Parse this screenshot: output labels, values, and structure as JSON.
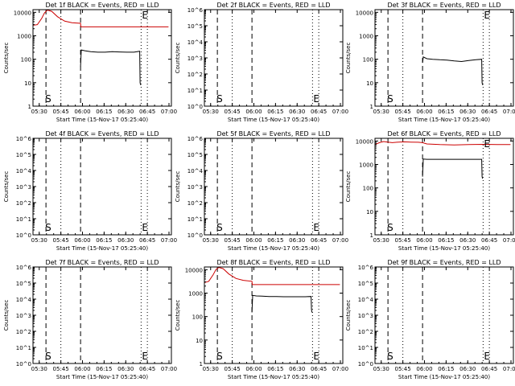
{
  "colors": {
    "background": "#ffffff",
    "axes": "#000000",
    "events": "#000000",
    "lld": "#cc0000"
  },
  "chart_data": [
    {
      "type": "line",
      "title": "Det 1f BLACK = Events, RED = LLD",
      "xlabel": "Start Time (15-Nov-17 05:25:40)",
      "ylabel": "Counts/sec",
      "x_unit": "minutes since 05:25:40",
      "xlim": [
        0,
        96
      ],
      "xtick_values": [
        4.33,
        19.33,
        34.33,
        49.33,
        64.33,
        79.33,
        94.33
      ],
      "xtick_labels": [
        "05:30",
        "05:45",
        "06:00",
        "06:15",
        "06:30",
        "06:45",
        "07:00"
      ],
      "ylim": [
        1,
        13000
      ],
      "ytick_values": [
        1,
        10,
        100,
        1000,
        10000
      ],
      "ytick_labels": [
        "1",
        "10",
        "100",
        "1000",
        "10000"
      ],
      "markers": [
        {
          "label": "E",
          "x": 75
        }
      ],
      "secondary_markers": [
        {
          "label": "S",
          "x": 9
        }
      ],
      "dashed_lines_x": [
        9,
        33
      ],
      "dotted_lines_x": [
        19.33,
        75,
        79.33
      ],
      "series": [
        {
          "name": "LLD",
          "color": "#cc0000",
          "x": [
            0,
            3,
            6,
            8,
            10,
            13,
            17,
            22,
            27,
            33,
            33.2,
            40,
            60,
            80,
            94
          ],
          "y": [
            2800,
            3000,
            5500,
            9500,
            12500,
            11000,
            6500,
            4200,
            3600,
            3400,
            2400,
            2400,
            2400,
            2400,
            2400
          ]
        },
        {
          "name": "Events",
          "color": "#000000",
          "x": [
            33,
            33.5,
            36,
            40,
            45,
            50,
            55,
            60,
            65,
            70,
            74,
            74.3,
            74.6
          ],
          "y": [
            50,
            250,
            230,
            210,
            200,
            200,
            210,
            205,
            200,
            200,
            220,
            10,
            8
          ]
        }
      ]
    },
    {
      "type": "line",
      "title": "Det 2f BLACK = Events, RED = LLD",
      "xlabel": "Start Time (15-Nov-17 05:25:40)",
      "ylabel": "Counts/sec",
      "x_unit": "minutes since 05:25:40",
      "xlim": [
        0,
        96
      ],
      "xtick_values": [
        4.33,
        19.33,
        34.33,
        49.33,
        64.33,
        79.33,
        94.33
      ],
      "xtick_labels": [
        "05:30",
        "05:45",
        "06:00",
        "06:15",
        "06:30",
        "06:45",
        "07:00"
      ],
      "ylim": [
        1,
        1000000
      ],
      "ytick_values": [
        1,
        10,
        100,
        1000,
        10000,
        100000,
        1000000
      ],
      "ytick_labels": [
        "10^0",
        "10^1",
        "10^2",
        "10^3",
        "10^4",
        "10^5",
        "10^6"
      ],
      "markers": [
        {
          "label": "E",
          "x": 75
        }
      ],
      "secondary_markers": [
        {
          "label": "S",
          "x": 9
        }
      ],
      "dashed_lines_x": [
        9,
        33
      ],
      "dotted_lines_x": [
        19.33,
        75,
        79.33
      ],
      "series": []
    },
    {
      "type": "line",
      "title": "Det 3f BLACK = Events, RED = LLD",
      "xlabel": "Start Time (15-Nov-17 05:25:40)",
      "ylabel": "Counts/sec",
      "x_unit": "minutes since 05:25:40",
      "xlim": [
        0,
        96
      ],
      "xtick_values": [
        4.33,
        19.33,
        34.33,
        49.33,
        64.33,
        79.33,
        94.33
      ],
      "xtick_labels": [
        "05:30",
        "05:45",
        "06:00",
        "06:15",
        "06:30",
        "06:45",
        "07:00"
      ],
      "ylim": [
        1,
        13000
      ],
      "ytick_values": [
        1,
        10,
        100,
        1000,
        10000
      ],
      "ytick_labels": [
        "1",
        "10",
        "100",
        "1000",
        "10000"
      ],
      "markers": [
        {
          "label": "E",
          "x": 75
        }
      ],
      "secondary_markers": [
        {
          "label": "S",
          "x": 9
        }
      ],
      "dashed_lines_x": [
        9,
        33
      ],
      "dotted_lines_x": [
        19.33,
        75,
        79.33
      ],
      "series": [
        {
          "name": "Events",
          "color": "#000000",
          "x": [
            33,
            33.5,
            36,
            40,
            45,
            50,
            55,
            60,
            65,
            70,
            74,
            74.3,
            74.6
          ],
          "y": [
            70,
            125,
            105,
            100,
            95,
            92,
            85,
            80,
            88,
            95,
            100,
            10,
            8
          ]
        }
      ]
    },
    {
      "type": "line",
      "title": "Det 4f BLACK = Events, RED = LLD",
      "xlabel": "Start Time (15-Nov-17 05:25:40)",
      "ylabel": "Counts/sec",
      "x_unit": "minutes since 05:25:40",
      "xlim": [
        0,
        96
      ],
      "xtick_values": [
        4.33,
        19.33,
        34.33,
        49.33,
        64.33,
        79.33,
        94.33
      ],
      "xtick_labels": [
        "05:30",
        "05:45",
        "06:00",
        "06:15",
        "06:30",
        "06:45",
        "07:00"
      ],
      "ylim": [
        1,
        1000000
      ],
      "ytick_values": [
        1,
        10,
        100,
        1000,
        10000,
        100000,
        1000000
      ],
      "ytick_labels": [
        "10^0",
        "10^1",
        "10^2",
        "10^3",
        "10^4",
        "10^5",
        "10^6"
      ],
      "markers": [
        {
          "label": "E",
          "x": 75
        }
      ],
      "secondary_markers": [
        {
          "label": "S",
          "x": 9
        }
      ],
      "dashed_lines_x": [
        9,
        33
      ],
      "dotted_lines_x": [
        19.33,
        75,
        79.33
      ],
      "series": []
    },
    {
      "type": "line",
      "title": "Det 5f BLACK = Events, RED = LLD",
      "xlabel": "Start Time (15-Nov-17 05:25:40)",
      "ylabel": "Counts/sec",
      "x_unit": "minutes since 05:25:40",
      "xlim": [
        0,
        96
      ],
      "xtick_values": [
        4.33,
        19.33,
        34.33,
        49.33,
        64.33,
        79.33,
        94.33
      ],
      "xtick_labels": [
        "05:30",
        "05:45",
        "06:00",
        "06:15",
        "06:30",
        "06:45",
        "07:00"
      ],
      "ylim": [
        1,
        1000000
      ],
      "ytick_values": [
        1,
        10,
        100,
        1000,
        10000,
        100000,
        1000000
      ],
      "ytick_labels": [
        "10^0",
        "10^1",
        "10^2",
        "10^3",
        "10^4",
        "10^5",
        "10^6"
      ],
      "markers": [
        {
          "label": "E",
          "x": 75
        }
      ],
      "secondary_markers": [
        {
          "label": "S",
          "x": 9
        }
      ],
      "dashed_lines_x": [
        9,
        33
      ],
      "dotted_lines_x": [
        19.33,
        75,
        79.33
      ],
      "series": []
    },
    {
      "type": "line",
      "title": "Det 6f BLACK = Events, RED = LLD",
      "xlabel": "Start Time (15-Nov-17 05:25:40)",
      "ylabel": "Counts/sec",
      "x_unit": "minutes since 05:25:40",
      "xlim": [
        0,
        96
      ],
      "xtick_values": [
        4.33,
        19.33,
        34.33,
        49.33,
        64.33,
        79.33,
        94.33
      ],
      "xtick_labels": [
        "05:30",
        "05:45",
        "06:00",
        "06:15",
        "06:30",
        "06:45",
        "07:00"
      ],
      "ylim": [
        1,
        13000
      ],
      "ytick_values": [
        1,
        10,
        100,
        1000,
        10000
      ],
      "ytick_labels": [
        "1",
        "10",
        "100",
        "1000",
        "10000"
      ],
      "markers": [
        {
          "label": "E",
          "x": 75
        }
      ],
      "secondary_markers": [
        {
          "label": "S",
          "x": 9
        }
      ],
      "dashed_lines_x": [
        9,
        33
      ],
      "dotted_lines_x": [
        19.33,
        75,
        79.33
      ],
      "series": [
        {
          "name": "LLD",
          "color": "#cc0000",
          "x": [
            0,
            3,
            6,
            9,
            12,
            15,
            20,
            25,
            30,
            33,
            36,
            45,
            55,
            65,
            75,
            85,
            94
          ],
          "y": [
            7000,
            8500,
            9500,
            9000,
            8500,
            8800,
            9200,
            9000,
            8800,
            8500,
            7500,
            7000,
            6800,
            7000,
            7200,
            7000,
            7000
          ]
        },
        {
          "name": "Events",
          "color": "#000000",
          "x": [
            33,
            33.5,
            36,
            40,
            45,
            50,
            55,
            60,
            65,
            70,
            74,
            74.3,
            74.6
          ],
          "y": [
            300,
            1700,
            1650,
            1650,
            1650,
            1650,
            1650,
            1650,
            1650,
            1650,
            1650,
            300,
            250
          ]
        }
      ]
    },
    {
      "type": "line",
      "title": "Det 7f BLACK = Events, RED = LLD",
      "xlabel": "Start Time (15-Nov-17 05:25:40)",
      "ylabel": "Counts/sec",
      "x_unit": "minutes since 05:25:40",
      "xlim": [
        0,
        96
      ],
      "xtick_values": [
        4.33,
        19.33,
        34.33,
        49.33,
        64.33,
        79.33,
        94.33
      ],
      "xtick_labels": [
        "05:30",
        "05:45",
        "06:00",
        "06:15",
        "06:30",
        "06:45",
        "07:00"
      ],
      "ylim": [
        1,
        1000000
      ],
      "ytick_values": [
        1,
        10,
        100,
        1000,
        10000,
        100000,
        1000000
      ],
      "ytick_labels": [
        "10^0",
        "10^1",
        "10^2",
        "10^3",
        "10^4",
        "10^5",
        "10^6"
      ],
      "markers": [
        {
          "label": "E",
          "x": 75
        }
      ],
      "secondary_markers": [
        {
          "label": "S",
          "x": 9
        }
      ],
      "dashed_lines_x": [
        9,
        33
      ],
      "dotted_lines_x": [
        19.33,
        75,
        79.33
      ],
      "series": []
    },
    {
      "type": "line",
      "title": "Det 8f BLACK = Events, RED = LLD",
      "xlabel": "Start Time (15-Nov-17 05:25:40)",
      "ylabel": "Counts/sec",
      "x_unit": "minutes since 05:25:40",
      "xlim": [
        0,
        96
      ],
      "xtick_values": [
        4.33,
        19.33,
        34.33,
        49.33,
        64.33,
        79.33,
        94.33
      ],
      "xtick_labels": [
        "05:30",
        "05:45",
        "06:00",
        "06:15",
        "06:30",
        "06:45",
        "07:00"
      ],
      "ylim": [
        1,
        13000
      ],
      "ytick_values": [
        1,
        10,
        100,
        1000,
        10000
      ],
      "ytick_labels": [
        "1",
        "10",
        "100",
        "1000",
        "10000"
      ],
      "markers": [
        {
          "label": "E",
          "x": 75
        }
      ],
      "secondary_markers": [
        {
          "label": "S",
          "x": 9
        }
      ],
      "dashed_lines_x": [
        9,
        33
      ],
      "dotted_lines_x": [
        19.33,
        75,
        79.33
      ],
      "series": [
        {
          "name": "LLD",
          "color": "#cc0000",
          "x": [
            0,
            3,
            6,
            8,
            10,
            13,
            17,
            22,
            27,
            33,
            33.2,
            40,
            60,
            80,
            94
          ],
          "y": [
            2800,
            3200,
            6000,
            10000,
            12500,
            11000,
            6500,
            4200,
            3500,
            3200,
            2300,
            2300,
            2300,
            2300,
            2300
          ]
        },
        {
          "name": "Events",
          "color": "#000000",
          "x": [
            33,
            33.5,
            36,
            40,
            45,
            50,
            55,
            60,
            65,
            70,
            74,
            74.3,
            74.6
          ],
          "y": [
            150,
            800,
            760,
            740,
            720,
            710,
            700,
            700,
            700,
            700,
            720,
            200,
            150
          ]
        }
      ]
    },
    {
      "type": "line",
      "title": "Det 9f BLACK = Events, RED = LLD",
      "xlabel": "Start Time (15-Nov-17 05:25:40)",
      "ylabel": "Counts/sec",
      "x_unit": "minutes since 05:25:40",
      "xlim": [
        0,
        96
      ],
      "xtick_values": [
        4.33,
        19.33,
        34.33,
        49.33,
        64.33,
        79.33,
        94.33
      ],
      "xtick_labels": [
        "05:30",
        "05:45",
        "06:00",
        "06:15",
        "06:30",
        "06:45",
        "07:00"
      ],
      "ylim": [
        1,
        1000000
      ],
      "ytick_values": [
        1,
        10,
        100,
        1000,
        10000,
        100000,
        1000000
      ],
      "ytick_labels": [
        "10^0",
        "10^1",
        "10^2",
        "10^3",
        "10^4",
        "10^5",
        "10^6"
      ],
      "markers": [
        {
          "label": "E",
          "x": 75
        }
      ],
      "secondary_markers": [
        {
          "label": "S",
          "x": 9
        }
      ],
      "dashed_lines_x": [
        9,
        33
      ],
      "dotted_lines_x": [
        19.33,
        75,
        79.33
      ],
      "series": []
    }
  ]
}
